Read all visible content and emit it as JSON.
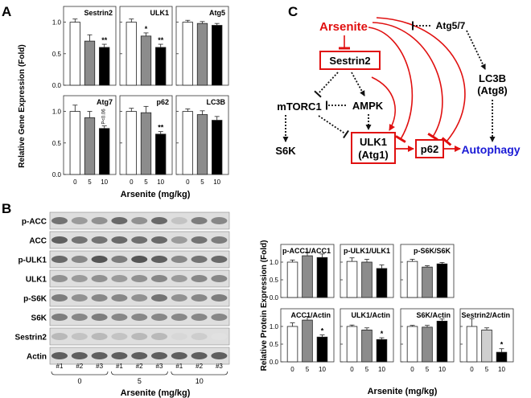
{
  "panels": {
    "A": "A",
    "B": "B",
    "C": "C"
  },
  "colors": {
    "white": "#ffffff",
    "gray": "#8c8c8c",
    "light_gray": "#cfcfcf",
    "black": "#000000",
    "red": "#e01010",
    "blue": "#1a1ad6"
  },
  "chart_data": [
    {
      "type": "bar",
      "panel": "A",
      "ylabel": "Relative Gene Expression (Fold)",
      "xlabel": "Arsenite (mg/kg)",
      "categories": [
        "0",
        "5",
        "10"
      ],
      "ylim": [
        0,
        1.25
      ],
      "yticks": [
        "0.0",
        "0.5",
        "1.0"
      ],
      "subplots": [
        {
          "title": "Sestrin2",
          "values": [
            1.0,
            0.7,
            0.6
          ],
          "errors": [
            0.05,
            0.1,
            0.05
          ],
          "marks": [
            "",
            "",
            "**"
          ]
        },
        {
          "title": "ULK1",
          "values": [
            1.0,
            0.78,
            0.6
          ],
          "errors": [
            0.05,
            0.05,
            0.05
          ],
          "marks": [
            "",
            "*",
            "**"
          ]
        },
        {
          "title": "Atg5",
          "values": [
            1.0,
            0.98,
            0.95
          ],
          "errors": [
            0.03,
            0.03,
            0.03
          ],
          "marks": [
            "",
            "",
            ""
          ]
        },
        {
          "title": "Atg7",
          "values": [
            1.0,
            0.9,
            0.73
          ],
          "errors": [
            0.1,
            0.1,
            0.04
          ],
          "marks": [
            "",
            "",
            "P<0.06"
          ]
        },
        {
          "title": "p62",
          "values": [
            1.0,
            0.98,
            0.64
          ],
          "errors": [
            0.05,
            0.1,
            0.04
          ],
          "marks": [
            "",
            "",
            "**"
          ]
        },
        {
          "title": "LC3B",
          "values": [
            1.0,
            0.95,
            0.86
          ],
          "errors": [
            0.04,
            0.06,
            0.06
          ],
          "marks": [
            "",
            "",
            ""
          ]
        }
      ]
    },
    {
      "type": "bar",
      "panel": "B",
      "ylabel": "Relative Protein Expression (Fold)",
      "xlabel": "Arsenite (mg/kg)",
      "categories": [
        "0",
        "5",
        "10"
      ],
      "ylim": [
        0,
        1.5
      ],
      "yticks": [
        "0.0",
        "0.5",
        "1.0"
      ],
      "subplots": [
        {
          "title": "p-ACC1/ACC1",
          "values": [
            1.0,
            1.18,
            1.13
          ],
          "errors": [
            0.06,
            0.1,
            0.1
          ],
          "marks": [
            "",
            "",
            ""
          ]
        },
        {
          "title": "p-ULK1/ULK1",
          "values": [
            1.02,
            1.0,
            0.82
          ],
          "errors": [
            0.1,
            0.08,
            0.1
          ],
          "marks": [
            "",
            "",
            ""
          ]
        },
        {
          "title": "p-S6K/S6K",
          "values": [
            1.02,
            0.86,
            0.95
          ],
          "errors": [
            0.06,
            0.04,
            0.04
          ],
          "marks": [
            "",
            "",
            ""
          ]
        },
        {
          "title": "ACC1/Actin",
          "values": [
            1.0,
            1.18,
            0.7
          ],
          "errors": [
            0.1,
            0.1,
            0.06
          ],
          "marks": [
            "",
            "",
            "*"
          ]
        },
        {
          "title": "ULK1/Actin",
          "values": [
            1.0,
            0.9,
            0.63
          ],
          "errors": [
            0.04,
            0.06,
            0.05
          ],
          "marks": [
            "",
            "",
            "*"
          ]
        },
        {
          "title": "S6K/Actin",
          "values": [
            1.0,
            0.98,
            1.15
          ],
          "errors": [
            0.03,
            0.05,
            0.06
          ],
          "marks": [
            "",
            "",
            ""
          ]
        },
        {
          "title": "Sestrin2/Actin",
          "values": [
            1.0,
            0.9,
            0.27
          ],
          "errors": [
            0.22,
            0.06,
            0.1
          ],
          "marks": [
            "",
            "",
            "*"
          ]
        }
      ]
    }
  ],
  "blot": {
    "labels": [
      "p-ACC",
      "ACC",
      "p-ULK1",
      "ULK1",
      "p-S6K",
      "S6K",
      "Sestrin2",
      "Actin"
    ],
    "lanes": [
      "#1",
      "#2",
      "#3",
      "#1",
      "#2",
      "#3",
      "#1",
      "#2",
      "#3"
    ],
    "groups": [
      "0",
      "5",
      "10"
    ],
    "xlabel": "Arsenite (mg/kg)"
  },
  "diagram": {
    "arsenite": "Arsenite",
    "sestrin2": "Sestrin2",
    "atg57": "Atg5/7",
    "mtorc1": "mTORC1",
    "ampk": "AMPK",
    "lc3b": "LC3B",
    "atg8": "(Atg8)",
    "s6k": "S6K",
    "ulk1": "ULK1",
    "atg1": "(Atg1)",
    "p62": "p62",
    "autophagy": "Autophagy"
  }
}
